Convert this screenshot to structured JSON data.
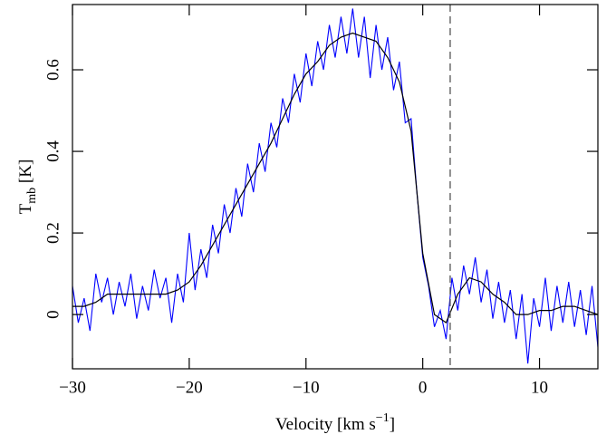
{
  "chart_data": {
    "type": "line",
    "x_label": {
      "text": "Velocity [km s",
      "sup": "−1",
      "close": "]"
    },
    "y_label": {
      "main": "T",
      "sub": "mb",
      "unit": "[K]"
    },
    "xlim": [
      -30,
      15
    ],
    "ylim": [
      -0.133,
      0.76
    ],
    "xticks": [
      {
        "value": -30,
        "label": "−30"
      },
      {
        "value": -20,
        "label": "−20"
      },
      {
        "value": -10,
        "label": "−10"
      },
      0,
      10
    ],
    "yticks": [
      0,
      0.2,
      0.4,
      0.6
    ],
    "vlines": [
      {
        "value": 2.35,
        "color": "#555555",
        "style": "dashed"
      }
    ],
    "series": [
      {
        "color": "#0000ff",
        "x": [
          -30,
          -29.5,
          -29,
          -28.5,
          -28,
          -27.5,
          -27,
          -26.5,
          -26,
          -25.5,
          -25,
          -24.5,
          -24,
          -23.5,
          -23,
          -22.5,
          -22,
          -21.5,
          -21,
          -20.5,
          -20,
          -19.5,
          -19,
          -18.5,
          -18,
          -17.5,
          -17,
          -16.5,
          -16,
          -15.5,
          -15,
          -14.5,
          -14,
          -13.5,
          -13,
          -12.5,
          -12,
          -11.5,
          -11,
          -10.5,
          -10,
          -9.5,
          -9,
          -8.5,
          -8,
          -7.5,
          -7,
          -6.5,
          -6,
          -5.5,
          -5,
          -4.5,
          -4,
          -3.5,
          -3,
          -2.5,
          -2,
          -1.5,
          -1,
          -0.5,
          0,
          0.5,
          1,
          1.5,
          2,
          2.5,
          3,
          3.5,
          4,
          4.5,
          5,
          5.5,
          6,
          6.5,
          7,
          7.5,
          8,
          8.5,
          9,
          9.5,
          10,
          10.5,
          11,
          11.5,
          12,
          12.5,
          13,
          13.5,
          14,
          14.5,
          15
        ],
        "values": [
          0.07,
          -0.02,
          0.04,
          -0.04,
          0.1,
          0.03,
          0.09,
          0.0,
          0.08,
          0.02,
          0.1,
          -0.01,
          0.07,
          0.01,
          0.11,
          0.04,
          0.09,
          -0.02,
          0.1,
          0.03,
          0.2,
          0.06,
          0.16,
          0.09,
          0.22,
          0.15,
          0.27,
          0.2,
          0.31,
          0.24,
          0.37,
          0.3,
          0.42,
          0.35,
          0.47,
          0.41,
          0.53,
          0.47,
          0.59,
          0.52,
          0.64,
          0.56,
          0.67,
          0.6,
          0.71,
          0.63,
          0.73,
          0.64,
          0.75,
          0.63,
          0.73,
          0.58,
          0.71,
          0.6,
          0.68,
          0.55,
          0.62,
          0.47,
          0.48,
          0.3,
          0.14,
          0.07,
          -0.03,
          0.01,
          -0.06,
          0.09,
          0.01,
          0.12,
          0.05,
          0.14,
          0.03,
          0.11,
          -0.01,
          0.08,
          -0.02,
          0.06,
          -0.06,
          0.05,
          -0.12,
          0.04,
          -0.03,
          0.09,
          -0.04,
          0.07,
          -0.02,
          0.08,
          -0.03,
          0.06,
          -0.05,
          0.07,
          -0.08
        ]
      },
      {
        "color": "#000000",
        "x": [
          -30,
          -29,
          -28,
          -27,
          -26,
          -25,
          -24,
          -23,
          -22,
          -21,
          -20,
          -19,
          -18,
          -17,
          -16,
          -15,
          -14,
          -13,
          -12,
          -11,
          -10,
          -9,
          -8,
          -7,
          -6,
          -5,
          -4,
          -3,
          -2,
          -1,
          0,
          1,
          2,
          3,
          4,
          5,
          6,
          7,
          8,
          9,
          10,
          11,
          12,
          13,
          14,
          15
        ],
        "values": [
          0.02,
          0.02,
          0.03,
          0.05,
          0.05,
          0.05,
          0.05,
          0.05,
          0.05,
          0.06,
          0.08,
          0.12,
          0.17,
          0.22,
          0.27,
          0.32,
          0.37,
          0.42,
          0.48,
          0.54,
          0.59,
          0.62,
          0.66,
          0.68,
          0.69,
          0.68,
          0.67,
          0.63,
          0.57,
          0.45,
          0.15,
          0.0,
          -0.02,
          0.05,
          0.09,
          0.08,
          0.05,
          0.03,
          0.0,
          0.0,
          0.01,
          0.01,
          0.02,
          0.02,
          0.01,
          0.0
        ]
      }
    ]
  }
}
